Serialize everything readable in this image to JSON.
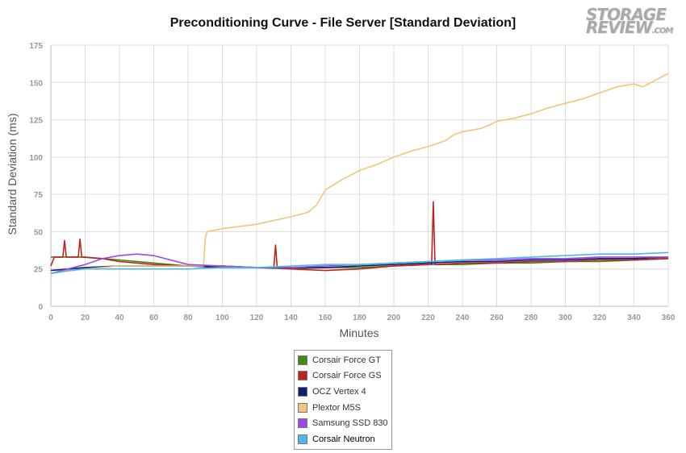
{
  "chart_data": {
    "type": "line",
    "title": "Preconditioning Curve - File Server [Standard Deviation]",
    "xlabel": "Minutes",
    "ylabel": "Standard Deviation (ms)",
    "xlim": [
      0,
      360
    ],
    "ylim": [
      0,
      175
    ],
    "x_ticks": [
      "0",
      "20",
      "40",
      "60",
      "80",
      "100",
      "120",
      "140",
      "160",
      "180",
      "200",
      "220",
      "240",
      "260",
      "280",
      "300",
      "320",
      "340",
      "360"
    ],
    "y_ticks": [
      "0",
      "25",
      "50",
      "75",
      "100",
      "125",
      "150",
      "175"
    ],
    "grid": true,
    "legend_position": "bottom-center",
    "series": [
      {
        "name": "Corsair Force GT",
        "color": "#3f8a1a",
        "points": [
          [
            0,
            33
          ],
          [
            10,
            33
          ],
          [
            20,
            33
          ],
          [
            30,
            32
          ],
          [
            40,
            31
          ],
          [
            60,
            29
          ],
          [
            80,
            27
          ],
          [
            100,
            27
          ],
          [
            120,
            26
          ],
          [
            140,
            25
          ],
          [
            160,
            26
          ],
          [
            180,
            26
          ],
          [
            200,
            27
          ],
          [
            220,
            28
          ],
          [
            240,
            28
          ],
          [
            260,
            29
          ],
          [
            280,
            29
          ],
          [
            300,
            30
          ],
          [
            320,
            30
          ],
          [
            340,
            31
          ],
          [
            360,
            32
          ]
        ]
      },
      {
        "name": "Corsair Force GS",
        "color": "#c0221c",
        "points": [
          [
            0,
            27
          ],
          [
            2,
            33
          ],
          [
            7,
            33
          ],
          [
            8,
            44
          ],
          [
            9,
            33
          ],
          [
            16,
            33
          ],
          [
            17,
            45
          ],
          [
            18,
            33
          ],
          [
            30,
            32
          ],
          [
            40,
            30
          ],
          [
            60,
            28
          ],
          [
            80,
            27
          ],
          [
            100,
            27
          ],
          [
            120,
            26
          ],
          [
            130,
            26
          ],
          [
            131,
            41
          ],
          [
            132,
            26
          ],
          [
            140,
            25
          ],
          [
            160,
            24
          ],
          [
            180,
            25
          ],
          [
            200,
            27
          ],
          [
            220,
            28
          ],
          [
            222,
            28
          ],
          [
            223,
            70
          ],
          [
            224,
            28
          ],
          [
            240,
            29
          ],
          [
            260,
            29
          ],
          [
            280,
            30
          ],
          [
            300,
            30
          ],
          [
            320,
            31
          ],
          [
            340,
            31
          ],
          [
            360,
            32
          ]
        ]
      },
      {
        "name": "OCZ Vertex 4",
        "color": "#0d1f6e",
        "points": [
          [
            0,
            24
          ],
          [
            10,
            25
          ],
          [
            20,
            26
          ],
          [
            40,
            27
          ],
          [
            60,
            27
          ],
          [
            80,
            27
          ],
          [
            100,
            26
          ],
          [
            120,
            26
          ],
          [
            140,
            26
          ],
          [
            160,
            26
          ],
          [
            180,
            27
          ],
          [
            200,
            28
          ],
          [
            220,
            29
          ],
          [
            240,
            30
          ],
          [
            260,
            30
          ],
          [
            280,
            31
          ],
          [
            300,
            31
          ],
          [
            320,
            32
          ],
          [
            340,
            32
          ],
          [
            360,
            33
          ]
        ]
      },
      {
        "name": "Plextor M5S",
        "color": "#f0c57c",
        "points": [
          [
            0,
            22
          ],
          [
            20,
            25
          ],
          [
            40,
            27
          ],
          [
            60,
            27
          ],
          [
            85,
            27
          ],
          [
            89,
            27
          ],
          [
            90,
            45
          ],
          [
            91,
            50
          ],
          [
            100,
            52
          ],
          [
            120,
            55
          ],
          [
            140,
            60
          ],
          [
            150,
            63
          ],
          [
            155,
            68
          ],
          [
            160,
            78
          ],
          [
            170,
            85
          ],
          [
            180,
            91
          ],
          [
            190,
            95
          ],
          [
            200,
            100
          ],
          [
            210,
            104
          ],
          [
            220,
            107
          ],
          [
            230,
            111
          ],
          [
            235,
            115
          ],
          [
            240,
            117
          ],
          [
            250,
            119
          ],
          [
            255,
            121
          ],
          [
            260,
            124
          ],
          [
            270,
            126
          ],
          [
            280,
            129
          ],
          [
            290,
            133
          ],
          [
            300,
            136
          ],
          [
            310,
            139
          ],
          [
            320,
            143
          ],
          [
            330,
            147
          ],
          [
            340,
            149
          ],
          [
            345,
            147
          ],
          [
            350,
            150
          ],
          [
            355,
            153
          ],
          [
            360,
            156
          ]
        ]
      },
      {
        "name": "Samsung SSD 830",
        "color": "#9b48e6",
        "points": [
          [
            0,
            22
          ],
          [
            10,
            25
          ],
          [
            20,
            28
          ],
          [
            30,
            32
          ],
          [
            40,
            34
          ],
          [
            50,
            35
          ],
          [
            60,
            34
          ],
          [
            70,
            31
          ],
          [
            80,
            28
          ],
          [
            100,
            27
          ],
          [
            120,
            26
          ],
          [
            140,
            26
          ],
          [
            160,
            27
          ],
          [
            180,
            28
          ],
          [
            200,
            29
          ],
          [
            220,
            30
          ],
          [
            240,
            31
          ],
          [
            260,
            31
          ],
          [
            280,
            32
          ],
          [
            300,
            32
          ],
          [
            320,
            33
          ],
          [
            340,
            33
          ],
          [
            360,
            33
          ]
        ]
      },
      {
        "name": "Corsair Neutron",
        "color": "#4bb8e8",
        "points": [
          [
            0,
            22
          ],
          [
            10,
            24
          ],
          [
            20,
            25
          ],
          [
            40,
            25
          ],
          [
            60,
            25
          ],
          [
            80,
            25
          ],
          [
            100,
            26
          ],
          [
            120,
            26
          ],
          [
            140,
            27
          ],
          [
            160,
            28
          ],
          [
            180,
            28
          ],
          [
            200,
            29
          ],
          [
            220,
            30
          ],
          [
            240,
            31
          ],
          [
            260,
            32
          ],
          [
            280,
            33
          ],
          [
            300,
            34
          ],
          [
            320,
            35
          ],
          [
            340,
            35
          ],
          [
            360,
            36
          ]
        ]
      }
    ]
  },
  "logo": {
    "line1": "STORAGE",
    "line2": "REVIEW",
    ".com": ".COM"
  }
}
